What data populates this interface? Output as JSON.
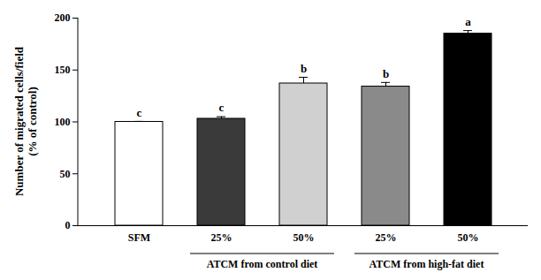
{
  "chart_data": {
    "type": "bar",
    "y_label": "Number of migrated cells/field\n(% of control)",
    "categories": [
      "SFM",
      "25%",
      "50%",
      "25%",
      "50%"
    ],
    "groups": [
      null,
      "ATCM from control diet",
      "ATCM from control diet",
      "ATCM from high-fat diet",
      "ATCM from high-fat diet"
    ],
    "values": [
      100,
      103,
      137,
      134,
      185
    ],
    "error": [
      0.5,
      2,
      6,
      4,
      3
    ],
    "significance": [
      "c",
      "c",
      "b",
      "b",
      "a"
    ],
    "colors": [
      "#ffffff",
      "#3a3a3a",
      "#d0d0d0",
      "#8a8a8a",
      "#000000"
    ],
    "ylim": [
      0,
      200
    ],
    "yticks": [
      0,
      50,
      100,
      150,
      200
    ]
  }
}
